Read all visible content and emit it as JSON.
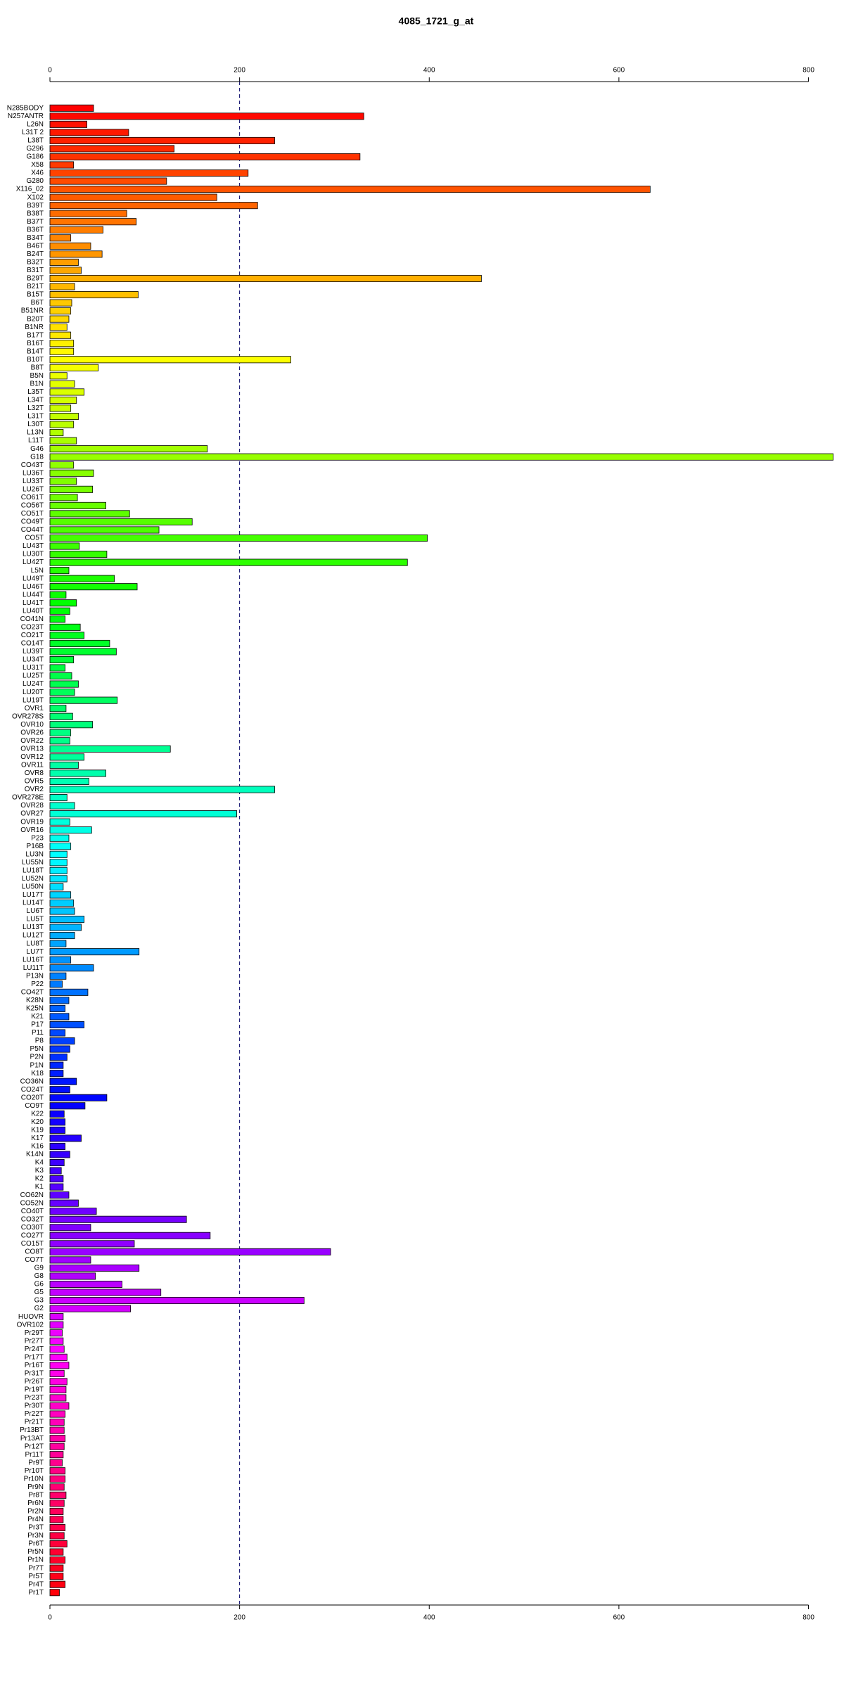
{
  "chart_data": {
    "type": "barh",
    "title": "4085_1721_g_at",
    "categories": [
      "N285BODY",
      "N257ANTR",
      "L26N",
      "L31T 2",
      "L38T",
      "G296",
      "G186",
      "X58",
      "X46",
      "G280",
      "X116_02",
      "X102",
      "B39T",
      "B38T",
      "B37T",
      "B36T",
      "B34T",
      "B46T",
      "B24T",
      "B32T",
      "B31T",
      "B29T",
      "B21T",
      "B15T",
      "B6T",
      "B51NR",
      "B20T",
      "B1NR",
      "B17T",
      "B16T",
      "B14T",
      "B10T",
      "B8T",
      "B5N",
      "B1N",
      "L35T",
      "L34T",
      "L32T",
      "L31T",
      "L30T",
      "L13N",
      "L11T",
      "G46",
      "G18",
      "CO43T",
      "LU36T",
      "LU33T",
      "LU26T",
      "CO61T",
      "CO56T",
      "CO51T",
      "CO49T",
      "CO44T",
      "CO5T",
      "LU43T",
      "LU30T",
      "LU42T",
      "L5N",
      "LU49T",
      "LU46T",
      "LU44T",
      "LU41T",
      "LU40T",
      "CO41N",
      "CO23T",
      "CO21T",
      "CO14T",
      "LU39T",
      "LU34T",
      "LU31T",
      "LU25T",
      "LU24T",
      "LU20T",
      "LU19T",
      "OVR1",
      "OVR278S",
      "OVR10",
      "OVR26",
      "OVR22",
      "OVR13",
      "OVR12",
      "OVR11",
      "OVR8",
      "OVR5",
      "OVR2",
      "OVR278E",
      "OVR28",
      "OVR27",
      "OVR19",
      "OVR16",
      "P23",
      "P16B",
      "LU3N",
      "LU55N",
      "LU18T",
      "LU52N",
      "LU50N",
      "LU17T",
      "LU14T",
      "LU6T",
      "LU5T",
      "LU13T",
      "LU12T",
      "LU8T",
      "LU7T",
      "LU16T",
      "LU11T",
      "P13N",
      "P22",
      "CO42T",
      "K28N",
      "K25N",
      "K21",
      "P17",
      "P11",
      "P8",
      "P5N",
      "P2N",
      "P1N",
      "K18",
      "CO36N",
      "CO24T",
      "CO20T",
      "CO9T",
      "K22",
      "K20",
      "K19",
      "K17",
      "K16",
      "K14N",
      "K4",
      "K3",
      "K2",
      "K1",
      "CO62N",
      "CO52N",
      "CO40T",
      "CO32T",
      "CO30T",
      "CO27T",
      "CO15T",
      "CO8T",
      "CO7T",
      "G9",
      "G8",
      "G6",
      "G5",
      "G3",
      "G2",
      "HUOVR",
      "OVR102",
      "Pr29T",
      "Pr27T",
      "Pr24T",
      "Pr17T",
      "Pr16T",
      "Pr31T",
      "Pr26T",
      "Pr19T",
      "Pr23T",
      "Pr30T",
      "Pr22T",
      "Pr21T",
      "Pr13BT",
      "Pr13AT",
      "Pr12T",
      "Pr11T",
      "Pr9T",
      "Pr10T",
      "Pr10N",
      "Pr9N",
      "Pr8T",
      "Pr6N",
      "Pr2N",
      "Pr4N",
      "Pr3T",
      "Pr3N",
      "Pr6T",
      "Pr5N",
      "Pr1N",
      "Pr7T",
      "Pr5T",
      "Pr4T",
      "Pr1T"
    ],
    "values": [
      46,
      331,
      39,
      83,
      237,
      131,
      327,
      25,
      209,
      123,
      633,
      176,
      219,
      81,
      91,
      56,
      22,
      43,
      55,
      30,
      33,
      455,
      26,
      93,
      23,
      22,
      20,
      18,
      22,
      25,
      25,
      254,
      51,
      18,
      26,
      36,
      28,
      22,
      30,
      25,
      14,
      28,
      166,
      826,
      25,
      46,
      28,
      45,
      29,
      59,
      84,
      150,
      115,
      398,
      31,
      60,
      377,
      20,
      68,
      92,
      17,
      28,
      21,
      16,
      32,
      36,
      63,
      70,
      25,
      16,
      23,
      30,
      26,
      71,
      17,
      24,
      45,
      22,
      21,
      127,
      36,
      30,
      59,
      41,
      237,
      18,
      26,
      197,
      21,
      44,
      20,
      22,
      18,
      18,
      18,
      18,
      14,
      22,
      25,
      26,
      36,
      33,
      26,
      17,
      94,
      22,
      46,
      17,
      13,
      40,
      20,
      16,
      20,
      36,
      16,
      26,
      21,
      18,
      14,
      14,
      28,
      21,
      60,
      37,
      15,
      16,
      16,
      33,
      16,
      21,
      15,
      12,
      14,
      14,
      20,
      30,
      49,
      144,
      43,
      169,
      89,
      296,
      43,
      94,
      48,
      76,
      117,
      268,
      85,
      14,
      14,
      13,
      14,
      15,
      18,
      20,
      15,
      18,
      17,
      17,
      20,
      16,
      15,
      15,
      16,
      15,
      14,
      13,
      16,
      16,
      15,
      17,
      15,
      14,
      14,
      16,
      15,
      18,
      14,
      16,
      14,
      14,
      16,
      10
    ],
    "palette": "rainbow",
    "xlim": [
      0,
      830
    ],
    "xticks": [
      0,
      200,
      400,
      600,
      800
    ],
    "reference_line": 200
  }
}
